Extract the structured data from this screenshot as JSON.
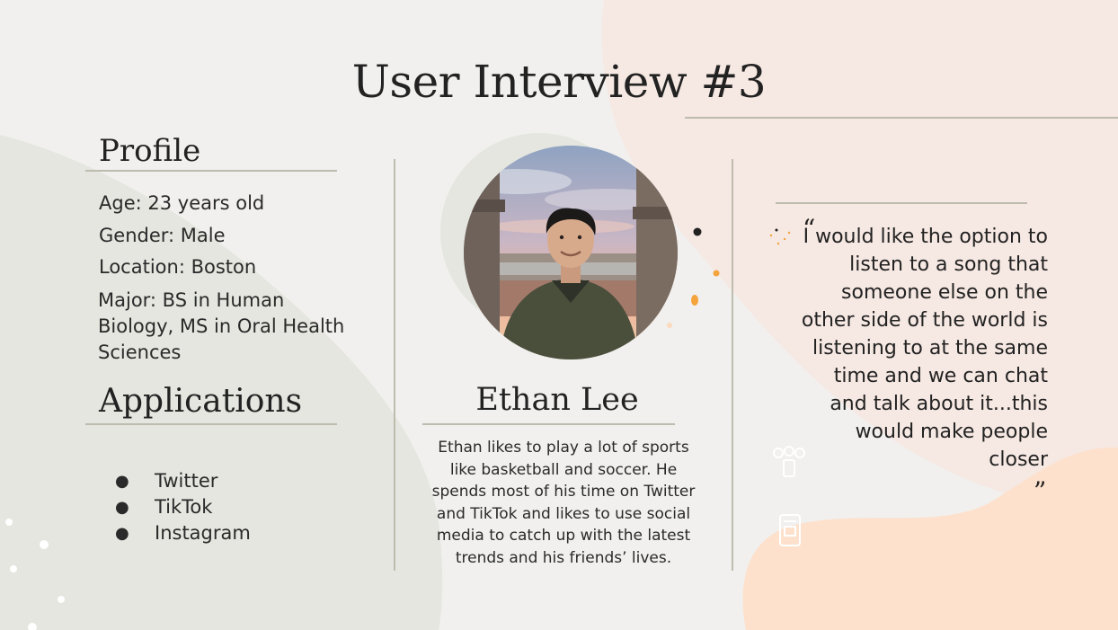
{
  "slide": {
    "title": "User Interview #3"
  },
  "profile": {
    "heading": "Profile",
    "age": "Age: 23 years old",
    "gender": "Gender: Male",
    "location": "Location: Boston",
    "major_line1": "Major: BS in Human",
    "major_line2": "Biology, MS in Oral Health",
    "major_line3": "Sciences"
  },
  "applications": {
    "heading": "Applications",
    "items": [
      "Twitter",
      "TikTok",
      "Instagram"
    ]
  },
  "person": {
    "name": "Ethan Lee",
    "bio": "Ethan likes to play a lot of sports like basketball and soccer. He spends most of his time on Twitter and TikTok and likes to use social media to catch up with the latest trends and his friends’ lives."
  },
  "quote": {
    "open_mark": "“",
    "close_mark": "”",
    "text": "I would like the option to listen to a song that someone else on the other side of the world is listening to at the same time and we can chat and talk about it...this would make people closer"
  },
  "colors": {
    "background": "#f1f0ee",
    "sage_blob": "#e4e6df",
    "peach_blob": "#f6e8e2",
    "orange_blob": "#fde1cc",
    "rule": "#bebcae",
    "accent_orange": "#f5a33b"
  }
}
